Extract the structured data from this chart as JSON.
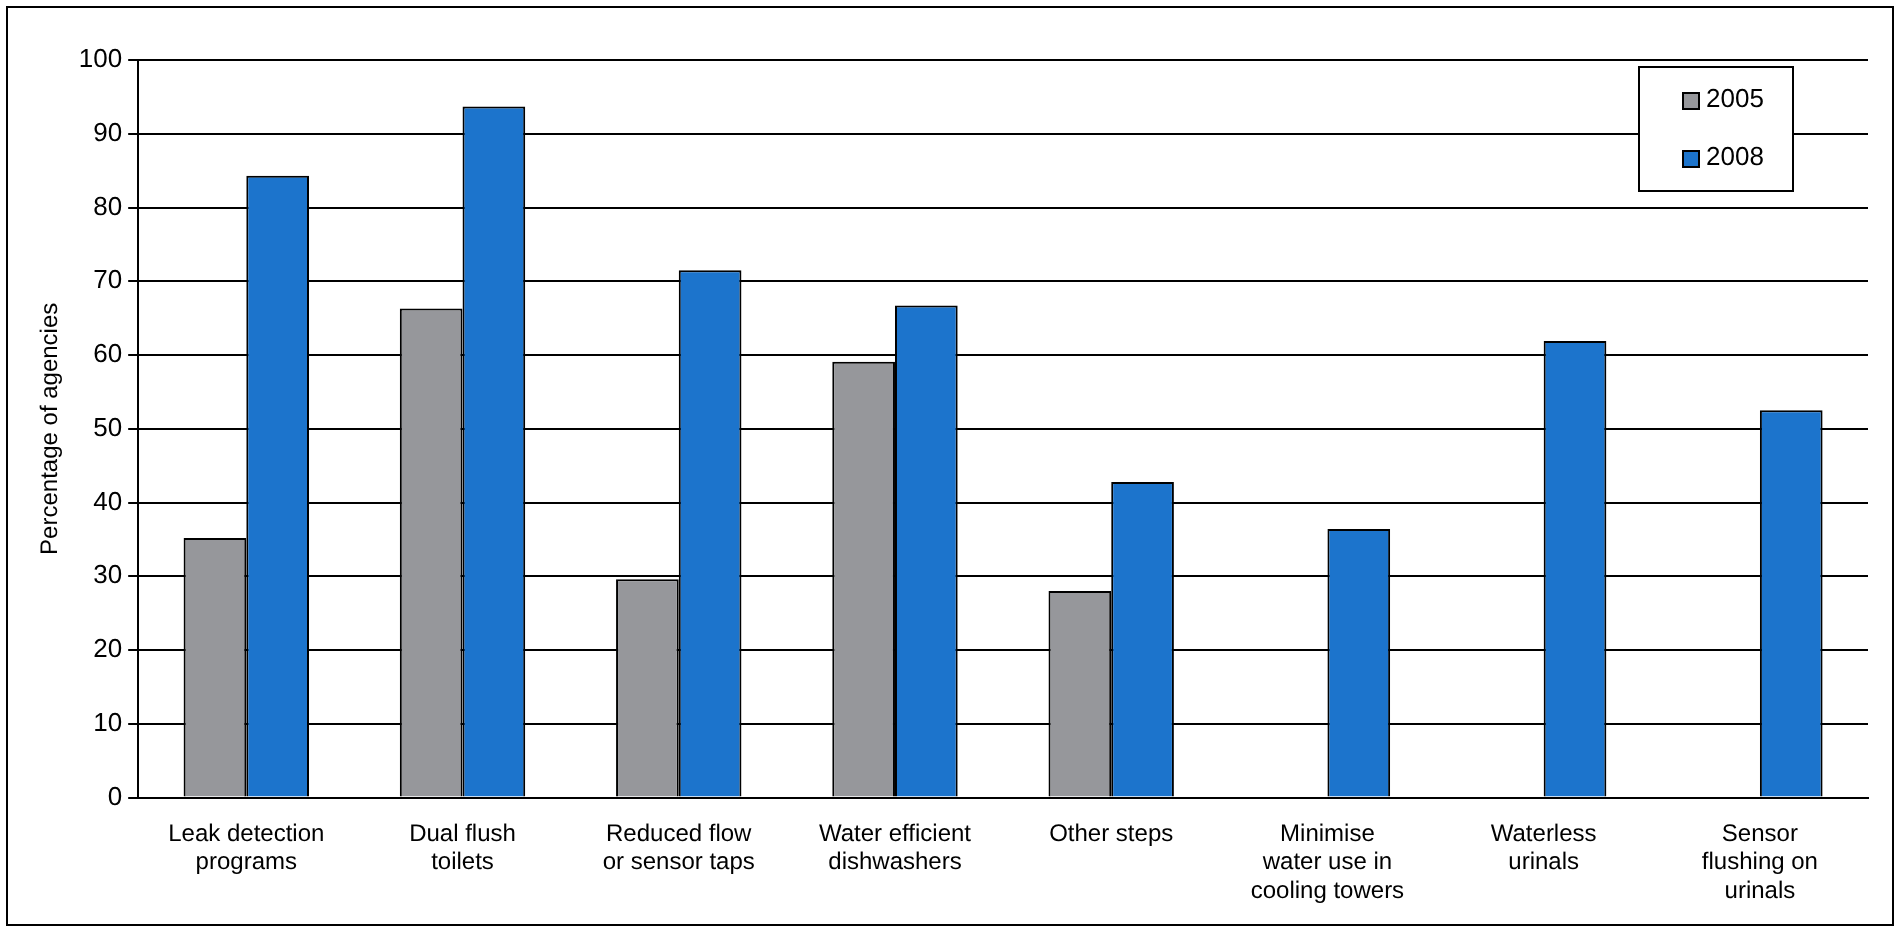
{
  "chart_data": {
    "type": "bar",
    "ylabel": "Percentage of agencies",
    "categories": [
      "Leak detection programs",
      "Dual flush toilets",
      "Reduced flow or sensor taps",
      "Water efficient dishwashers",
      "Other steps",
      "Minimise water use in cooling towers",
      "Waterless urinals",
      "Sensor flushing on urinals"
    ],
    "series": [
      {
        "name": "2005",
        "color": "#96979b",
        "values": [
          35.2,
          66.3,
          29.6,
          59.1,
          28.0,
          null,
          null,
          null
        ]
      },
      {
        "name": "2008",
        "color": "#1c74cc",
        "values": [
          84.3,
          93.7,
          71.5,
          66.7,
          42.8,
          36.4,
          61.9,
          52.5
        ]
      }
    ],
    "ylim": [
      0,
      100
    ],
    "yticks": [
      0,
      10,
      20,
      30,
      40,
      50,
      60,
      70,
      80,
      90,
      100
    ],
    "grid": "y",
    "legend": "top right"
  }
}
